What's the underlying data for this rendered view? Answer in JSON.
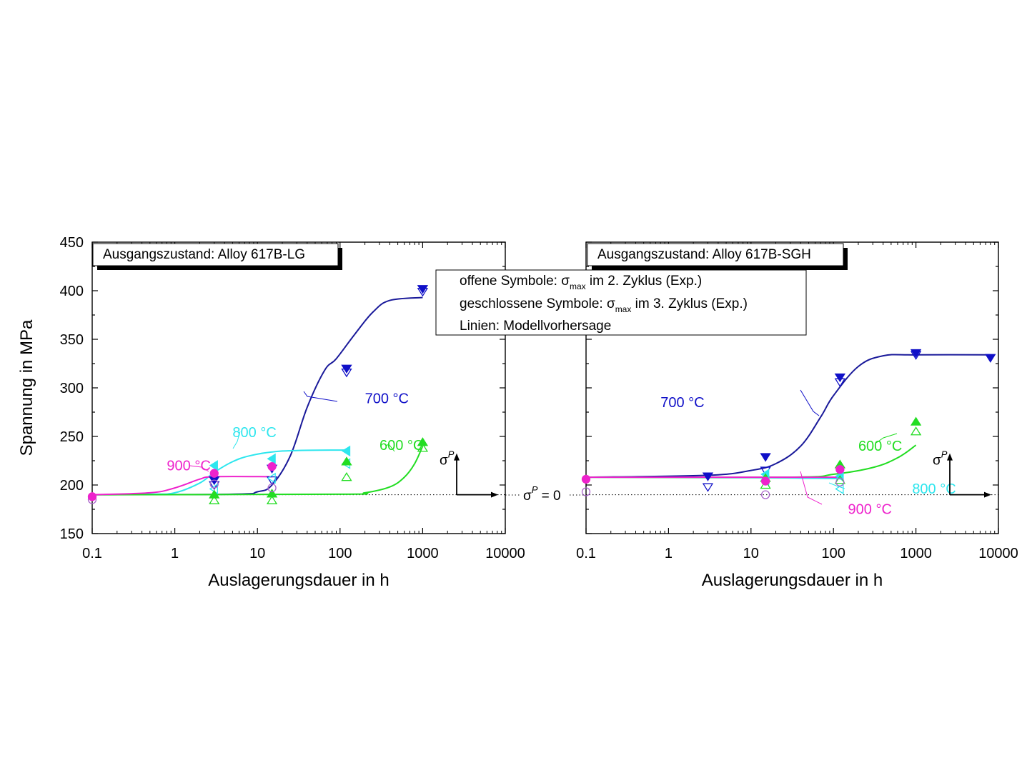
{
  "shared": {
    "y_axis_label": "Spannung in MPa",
    "legend_lines": [
      {
        "prefix": "offene Symbole: ",
        "sigma": "σ",
        "sub": "max",
        "suffix": " im 2. Zyklus (Exp.)"
      },
      {
        "prefix": "geschlossene Symbole:  ",
        "sigma": "σ",
        "sub": "max",
        "suffix": " im 3. Zyklus (Exp.)"
      },
      {
        "prefix": "Linien: Modellvorhersage",
        "sigma": "",
        "sub": "",
        "suffix": ""
      }
    ],
    "sigma_p_zero": {
      "sigma": "σ",
      "sup": "P",
      "rest": " = 0"
    },
    "sigma_p_axis": {
      "sigma": "σ",
      "sup": "P"
    }
  },
  "colors": {
    "c700": "#1010c8",
    "c700line": "#1a1a9a",
    "c800": "#2ee6ee",
    "c600": "#22dd22",
    "c900": "#ee22cc",
    "c900open": "#aa66cc",
    "axis": "#000000"
  },
  "chart_data": [
    {
      "type": "scatter",
      "title": "Ausgangszustand: Alloy 617B-LG",
      "xlabel": "Auslagerungsdauer in h",
      "ylabel": "Spannung in MPa",
      "x_scale": "log",
      "xlim": [
        0.1,
        10000
      ],
      "ylim": [
        150,
        450
      ],
      "x_ticks": [
        0.1,
        1,
        10,
        100,
        1000,
        10000
      ],
      "x_tick_labels": [
        "0.1",
        "1",
        "10",
        "100",
        "1000",
        "10000"
      ],
      "y_ticks": [
        150,
        200,
        250,
        300,
        350,
        400,
        450
      ],
      "y_tick_labels": [
        "150",
        "200",
        "250",
        "300",
        "350",
        "400",
        "450"
      ],
      "reference_line": 190,
      "series": [
        {
          "name": "700 °C",
          "color_key": "c700",
          "line_key": "c700line",
          "marker": "tri-down",
          "closed": [
            [
              3,
              205
            ],
            [
              15,
              217
            ],
            [
              120,
              320
            ],
            [
              1000,
              402
            ]
          ],
          "open": [
            [
              3,
              200
            ],
            [
              15,
              205
            ],
            [
              120,
              316
            ],
            [
              1000,
              399
            ]
          ],
          "model": [
            [
              0.1,
              190
            ],
            [
              5,
              190.5
            ],
            [
              10,
              193
            ],
            [
              15,
              200
            ],
            [
              25,
              230
            ],
            [
              40,
              280
            ],
            [
              65,
              318
            ],
            [
              90,
              330
            ],
            [
              150,
              355
            ],
            [
              250,
              378
            ],
            [
              400,
              390
            ],
            [
              1000,
              393
            ]
          ]
        },
        {
          "name": "800 °C",
          "color_key": "c800",
          "line_key": "c800",
          "marker": "tri-left",
          "closed": [
            [
              3,
              220
            ],
            [
              15,
              227
            ],
            [
              120,
              235
            ]
          ],
          "open": [
            [
              3,
              196
            ],
            [
              15,
              207
            ],
            [
              120,
              222
            ]
          ],
          "model": [
            [
              0.1,
              190
            ],
            [
              0.5,
              190.5
            ],
            [
              1,
              192
            ],
            [
              2,
              202
            ],
            [
              3,
              213
            ],
            [
              5,
              224
            ],
            [
              8,
              230
            ],
            [
              15,
              234
            ],
            [
              30,
              235.5
            ],
            [
              120,
              236
            ]
          ]
        },
        {
          "name": "600 °C",
          "color_key": "c600",
          "line_key": "c600",
          "marker": "tri-up",
          "closed": [
            [
              3,
              190
            ],
            [
              15,
              191
            ],
            [
              120,
              224
            ],
            [
              1000,
              244
            ]
          ],
          "open": [
            [
              3,
              184
            ],
            [
              15,
              184
            ],
            [
              120,
              208
            ],
            [
              1000,
              238
            ]
          ],
          "model": [
            [
              0.1,
              190
            ],
            [
              100,
              190.5
            ],
            [
              200,
              192
            ],
            [
              400,
              198
            ],
            [
              600,
              208
            ],
            [
              800,
              222
            ],
            [
              1000,
              240
            ]
          ]
        },
        {
          "name": "900 °C",
          "color_key": "c900",
          "line_key": "c900",
          "marker": "circle",
          "closed": [
            [
              0.1,
              188
            ],
            [
              3,
              212
            ],
            [
              15,
              219
            ]
          ],
          "open": [
            [
              0.1,
              185
            ],
            [
              3,
              201
            ],
            [
              15,
              197
            ]
          ],
          "model": [
            [
              0.1,
              190
            ],
            [
              0.5,
              192
            ],
            [
              1,
              197
            ],
            [
              2,
              206
            ],
            [
              3,
              208.5
            ],
            [
              15,
              208.5
            ]
          ]
        }
      ],
      "labels": [
        {
          "text": "700 °C",
          "color_key": "c700",
          "x": 200,
          "y": 290
        },
        {
          "text": "800 °C",
          "color_key": "c800",
          "x": 5,
          "y": 255
        },
        {
          "text": "600 °C",
          "color_key": "c600",
          "x": 300,
          "y": 242
        },
        {
          "text": "900 °C",
          "color_key": "c900",
          "x": 0.8,
          "y": 221
        }
      ]
    },
    {
      "type": "scatter",
      "title": "Ausgangszustand: Alloy 617B-SGH",
      "xlabel": "Auslagerungsdauer in h",
      "ylabel": "",
      "x_scale": "log",
      "xlim": [
        0.1,
        10000
      ],
      "ylim": [
        150,
        450
      ],
      "x_ticks": [
        0.1,
        1,
        10,
        100,
        1000,
        10000
      ],
      "x_tick_labels": [
        "0.1",
        "1",
        "10",
        "100",
        "1000",
        "10000"
      ],
      "y_ticks": [
        150,
        200,
        250,
        300,
        350,
        400,
        450
      ],
      "reference_line": 190,
      "series": [
        {
          "name": "700 °C",
          "color_key": "c700",
          "line_key": "c700line",
          "marker": "tri-down",
          "closed": [
            [
              3,
              209
            ],
            [
              15,
              229
            ],
            [
              120,
              311
            ],
            [
              1000,
              336
            ],
            [
              8000,
              331
            ]
          ],
          "open": [
            [
              3,
              198
            ],
            [
              15,
              215
            ],
            [
              120,
              306
            ],
            [
              1000,
              334
            ]
          ],
          "model": [
            [
              0.1,
              208
            ],
            [
              3,
              210
            ],
            [
              10,
              215
            ],
            [
              20,
              222
            ],
            [
              40,
              240
            ],
            [
              70,
              270
            ],
            [
              100,
              292
            ],
            [
              200,
              322
            ],
            [
              400,
              333
            ],
            [
              1000,
              334
            ],
            [
              8000,
              334
            ]
          ]
        },
        {
          "name": "800 °C",
          "color_key": "c800",
          "line_key": "c800",
          "marker": "tri-left",
          "closed": [
            [
              15,
              211
            ],
            [
              120,
              209
            ]
          ],
          "open": [
            [
              15,
              205
            ],
            [
              120,
              196
            ]
          ],
          "model": [
            [
              0.1,
              208
            ],
            [
              10,
              207.5
            ],
            [
              50,
              207
            ],
            [
              120,
              206.5
            ]
          ]
        },
        {
          "name": "600 °C",
          "color_key": "c600",
          "line_key": "c600",
          "marker": "tri-up",
          "closed": [
            [
              15,
              207
            ],
            [
              120,
              221
            ],
            [
              1000,
              265
            ]
          ],
          "open": [
            [
              15,
              200
            ],
            [
              120,
              205
            ],
            [
              1000,
              255
            ]
          ],
          "model": [
            [
              0.1,
              208
            ],
            [
              30,
              208
            ],
            [
              100,
              211
            ],
            [
              300,
              218
            ],
            [
              600,
              228
            ],
            [
              1000,
              241
            ]
          ]
        },
        {
          "name": "900 °C",
          "color_key": "c900",
          "line_key": "c900",
          "marker": "circle",
          "closed": [
            [
              0.1,
              206
            ],
            [
              15,
              204
            ],
            [
              120,
              216
            ]
          ],
          "open": [
            [
              0.1,
              193
            ],
            [
              15,
              190
            ],
            [
              120,
              203
            ]
          ],
          "model": [
            [
              0.1,
              208
            ],
            [
              15,
              208
            ],
            [
              120,
              208
            ]
          ]
        }
      ],
      "labels": [
        {
          "text": "700 °C",
          "color_key": "c700",
          "x": 0.8,
          "y": 286
        },
        {
          "text": "600 °C",
          "color_key": "c600",
          "x": 200,
          "y": 241
        },
        {
          "text": "800 °C",
          "color_key": "c800",
          "x": 900,
          "y": 197
        },
        {
          "text": "900 °C",
          "color_key": "c900",
          "x": 150,
          "y": 176
        }
      ]
    }
  ]
}
